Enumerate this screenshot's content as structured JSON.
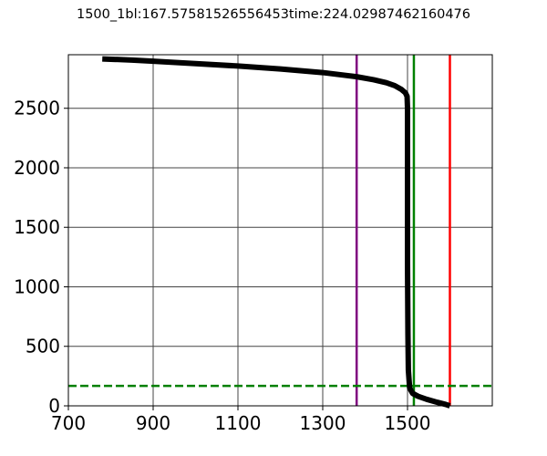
{
  "chart_data": {
    "type": "line",
    "title": "1500_1bl:167.57581526556453time:224.02987462160476",
    "xlabel": "",
    "ylabel": "",
    "xlim": [
      700,
      1700
    ],
    "ylim": [
      0,
      2950
    ],
    "grid": true,
    "x_ticks": [
      700,
      900,
      1100,
      1300,
      1500
    ],
    "y_ticks": [
      0,
      500,
      1000,
      1500,
      2000,
      2500
    ],
    "series": [
      {
        "color": "#000000",
        "points": [
          [
            1600,
            0
          ],
          [
            1590,
            12
          ],
          [
            1570,
            30
          ],
          [
            1545,
            55
          ],
          [
            1525,
            80
          ],
          [
            1512,
            105
          ],
          [
            1505,
            150
          ],
          [
            1502,
            300
          ],
          [
            1501,
            600
          ],
          [
            1500,
            1200
          ],
          [
            1500,
            2000
          ],
          [
            1500,
            2500
          ],
          [
            1499,
            2600
          ],
          [
            1495,
            2630
          ],
          [
            1485,
            2660
          ],
          [
            1470,
            2690
          ],
          [
            1450,
            2715
          ],
          [
            1420,
            2740
          ],
          [
            1380,
            2765
          ],
          [
            1300,
            2800
          ],
          [
            1200,
            2830
          ],
          [
            1100,
            2855
          ],
          [
            1000,
            2875
          ],
          [
            900,
            2895
          ],
          [
            850,
            2905
          ],
          [
            800,
            2912
          ],
          [
            780,
            2915
          ]
        ]
      }
    ],
    "vertical_lines": [
      {
        "x": 1380,
        "color": "#800080",
        "style": "solid"
      },
      {
        "x": 1515,
        "color": "#008000",
        "style": "solid"
      },
      {
        "x": 1600,
        "color": "#ff0000",
        "style": "solid"
      }
    ],
    "horizontal_lines": [
      {
        "y": 167.57581526556453,
        "color": "#008000",
        "style": "dashed"
      }
    ]
  }
}
